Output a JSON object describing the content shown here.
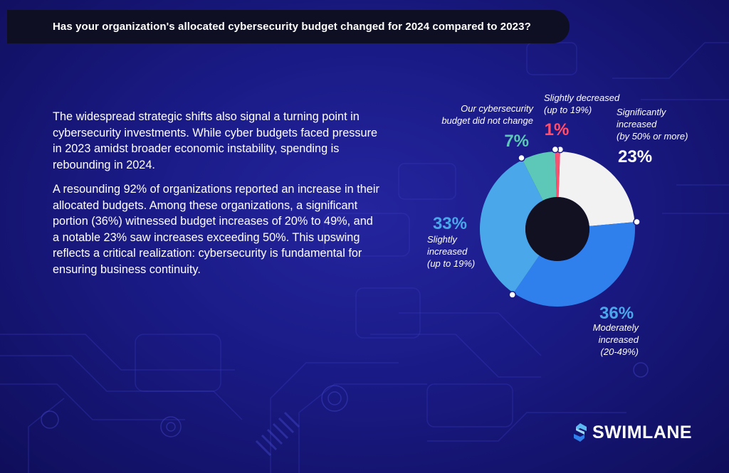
{
  "header": {
    "title": "Has your organization's allocated cybersecurity budget changed for 2024 compared to 2023?"
  },
  "body": {
    "paragraphs": [
      "The widespread strategic shifts also signal a turning point in cybersecurity investments. While cyber budgets faced pressure in 2023 amidst broader economic instability, spending is rebounding in 2024.",
      "A resounding 92% of organizations reported an increase in their allocated budgets. Among these organizations, a significant portion (36%) witnessed budget increases of 20% to 49%, and a notable 23% saw increases exceeding 50%. This upswing reflects a critical realization: cybersecurity is fundamental for ensuring business continuity."
    ]
  },
  "chart_data": {
    "type": "pie",
    "variant": "donut",
    "slices": [
      {
        "label_lines": [
          "Significantly",
          "increased",
          "(by 50% or more)"
        ],
        "value": 23,
        "value_label": "23%",
        "color": "#f2f2f2"
      },
      {
        "label_lines": [
          "Moderately",
          "increased",
          "(20-49%)"
        ],
        "value": 36,
        "value_label": "36%",
        "color": "#2f80ed"
      },
      {
        "label_lines": [
          "Slightly",
          "increased",
          "(up to 19%)"
        ],
        "value": 33,
        "value_label": "33%",
        "color": "#4aa8ea"
      },
      {
        "label_lines": [
          "Our cybersecurity",
          "budget did not change"
        ],
        "value": 7,
        "value_label": "7%",
        "color": "#5ec8b8"
      },
      {
        "label_lines": [
          "Slightly decreased",
          "(up to 19%)"
        ],
        "value": 1,
        "value_label": "1%",
        "color": "#ff4f6d"
      }
    ],
    "value_label_colors": [
      "#ffffff",
      "#4aa8ea",
      "#4aa8ea",
      "#5ec8b8",
      "#ff4f6d"
    ]
  },
  "logo": {
    "text": "SWIMLANE"
  },
  "colors": {
    "background": "#1a1a86",
    "title_bar": "#0f0f24",
    "accent": "#2f80ed"
  }
}
